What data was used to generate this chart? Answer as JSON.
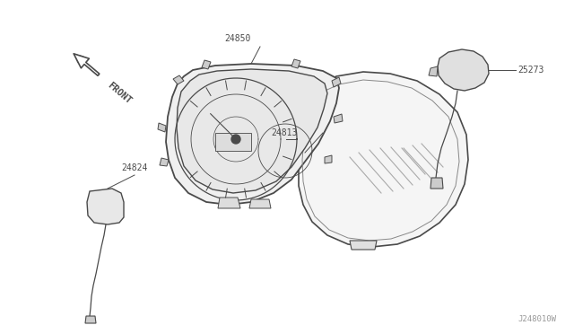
{
  "bg_color": "#ffffff",
  "line_color": "#4a4a4a",
  "text_color": "#4a4a4a",
  "watermark": "J248010W",
  "figsize": [
    6.4,
    3.72
  ],
  "dpi": 100
}
